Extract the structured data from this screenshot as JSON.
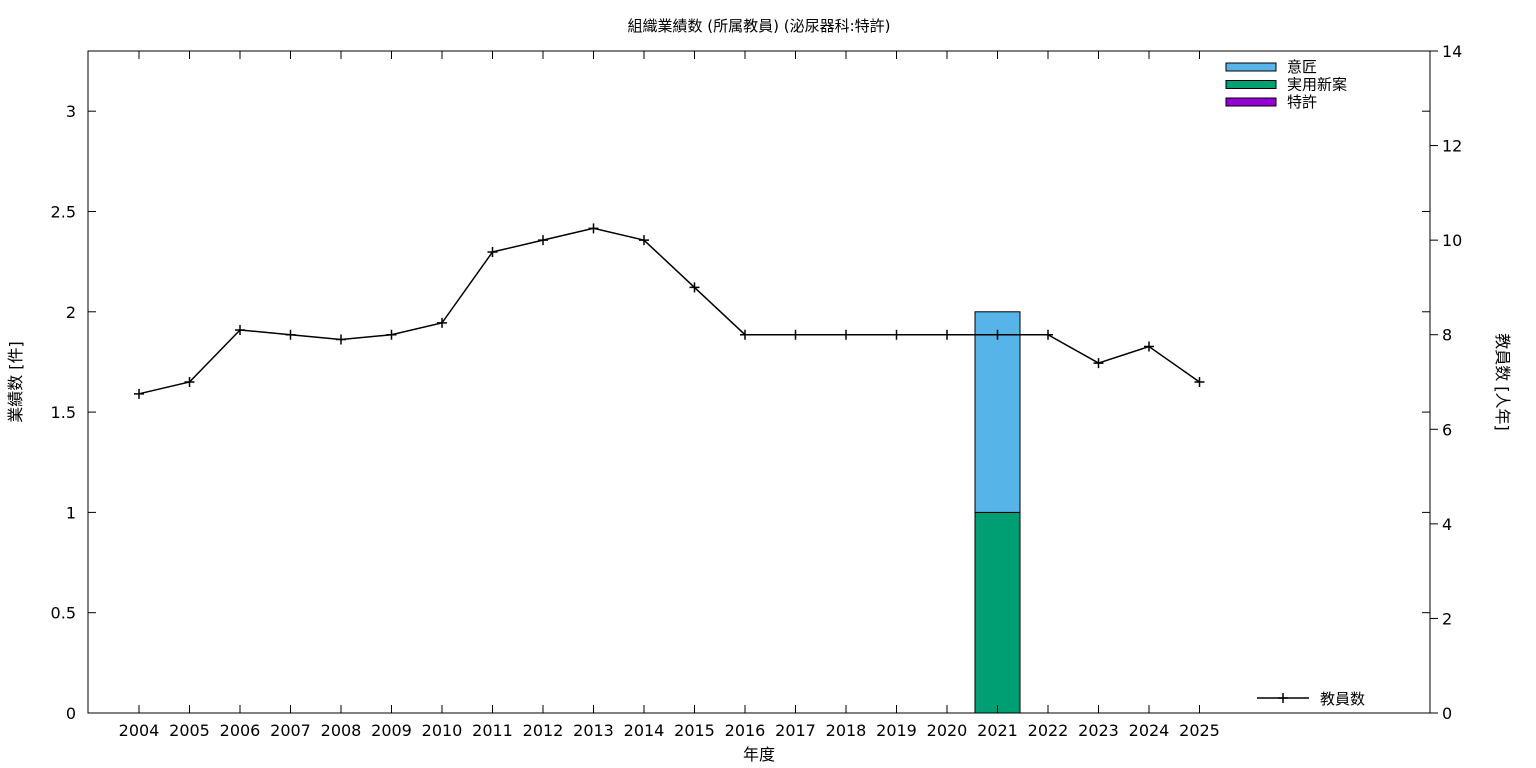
{
  "chart_data": {
    "type": "bar",
    "title": "組織業績数 (所属教員) (泌尿器科:特許)",
    "xlabel": "年度",
    "ylabel": "業績数 [件]",
    "y2label": "教員数 [人年]",
    "categories": [
      "2004",
      "2005",
      "2006",
      "2007",
      "2008",
      "2009",
      "2010",
      "2011",
      "2012",
      "2013",
      "2014",
      "2015",
      "2016",
      "2017",
      "2018",
      "2019",
      "2020",
      "2021",
      "2022",
      "2023",
      "2024",
      "2025"
    ],
    "ylim": [
      0,
      3.3
    ],
    "y2lim": [
      0,
      14
    ],
    "yticks": [
      "0",
      "0.5",
      "1",
      "1.5",
      "2",
      "2.5",
      "3"
    ],
    "y2ticks": [
      "0",
      "2",
      "4",
      "6",
      "8",
      "10",
      "12",
      "14"
    ],
    "stacked": true,
    "grid": false,
    "legend_position": "top-right",
    "series": [
      {
        "name": "特許",
        "color": "#9400d3",
        "values": [
          0,
          0,
          0,
          0,
          0,
          0,
          0,
          0,
          0,
          0,
          0,
          0,
          0,
          0,
          0,
          0,
          0,
          0,
          0,
          0,
          0,
          0
        ]
      },
      {
        "name": "実用新案",
        "color": "#009e73",
        "values": [
          0,
          0,
          0,
          0,
          0,
          0,
          0,
          0,
          0,
          0,
          0,
          0,
          0,
          0,
          0,
          0,
          0,
          1,
          0,
          0,
          0,
          0
        ]
      },
      {
        "name": "意匠",
        "color": "#56b4e9",
        "values": [
          0,
          0,
          0,
          0,
          0,
          0,
          0,
          0,
          0,
          0,
          0,
          0,
          0,
          0,
          0,
          0,
          0,
          1,
          0,
          0,
          0,
          0
        ]
      }
    ],
    "legend_order": [
      "意匠",
      "実用新案",
      "特許"
    ],
    "line_series": {
      "name": "教員数",
      "color": "#000000",
      "axis": "y2",
      "values": [
        6.75,
        7.0,
        8.1,
        8.0,
        7.9,
        8.0,
        8.25,
        9.75,
        10.0,
        10.25,
        10.0,
        9.0,
        8.0,
        8.0,
        8.0,
        8.0,
        8.0,
        8.0,
        8.0,
        7.4,
        7.75,
        7.0
      ]
    }
  }
}
